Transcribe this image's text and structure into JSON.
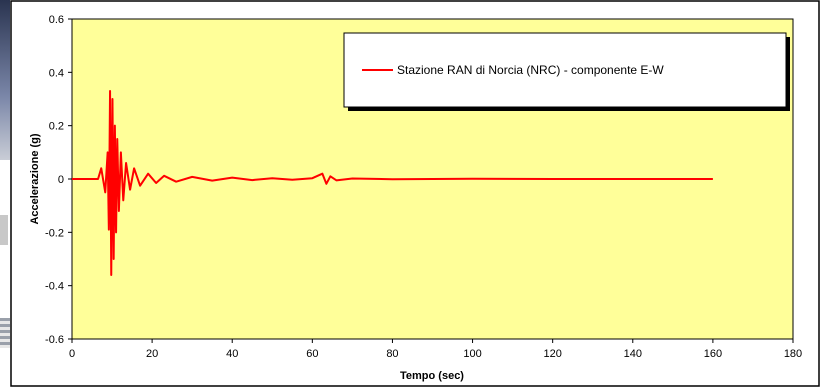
{
  "colors": {
    "plot_background": "#FFFF99",
    "series": "#FF0000",
    "frame": "#000000",
    "page_background": "#FFFFFF"
  },
  "chart_data": {
    "type": "line",
    "title": "",
    "xlabel": "Tempo (sec)",
    "ylabel": "Accelerazione (g)",
    "xlim": [
      0,
      180
    ],
    "ylim": [
      -0.6,
      0.6
    ],
    "xticks": [
      0,
      20,
      40,
      60,
      80,
      100,
      120,
      140,
      160,
      180
    ],
    "yticks": [
      -0.6,
      -0.4,
      -0.2,
      0,
      0.2,
      0.4,
      0.6
    ],
    "grid": false,
    "legend_position": "top-right",
    "series": [
      {
        "name": "Stazione RAN di Norcia (NRC) - componente E-W",
        "color": "#FF0000",
        "x": [
          0,
          6.5,
          7.3,
          8.3,
          8.9,
          9.2,
          9.5,
          9.8,
          10.1,
          10.4,
          10.7,
          11.0,
          11.3,
          11.7,
          12.2,
          12.8,
          13.5,
          14.5,
          15.5,
          17,
          19,
          21,
          23,
          26,
          30,
          35,
          40,
          45,
          50,
          55,
          60,
          62.5,
          63.5,
          64.5,
          66,
          70,
          80,
          100,
          120,
          140,
          160
        ],
        "y": [
          0.0,
          0.0,
          0.04,
          -0.05,
          0.1,
          -0.19,
          0.33,
          -0.36,
          0.3,
          -0.3,
          0.2,
          -0.2,
          0.15,
          -0.12,
          0.1,
          -0.08,
          0.06,
          -0.04,
          0.04,
          -0.025,
          0.02,
          -0.015,
          0.012,
          -0.01,
          0.008,
          -0.006,
          0.005,
          -0.004,
          0.003,
          -0.003,
          0.003,
          0.02,
          -0.018,
          0.01,
          -0.005,
          0.002,
          -0.001,
          0.001,
          0.0,
          0.0,
          0.0
        ]
      }
    ]
  }
}
